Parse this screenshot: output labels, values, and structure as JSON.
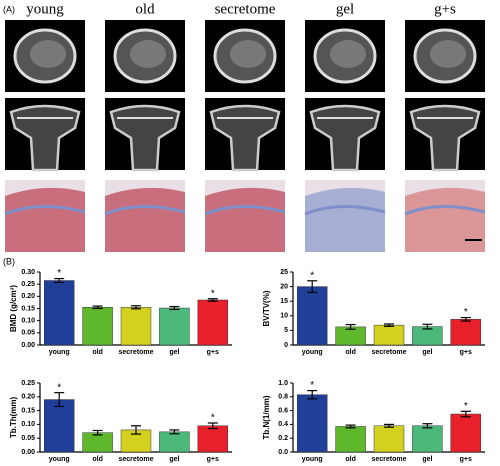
{
  "panel_labels": [
    "(A)",
    "(B)"
  ],
  "columns": [
    "young",
    "old",
    "secretome",
    "gel",
    "g+s"
  ],
  "chart_data": [
    {
      "type": "bar",
      "ylabel": "BMD (g/cm³)",
      "categories": [
        "young",
        "old",
        "secretome",
        "gel",
        "g+s"
      ],
      "values": [
        0.265,
        0.155,
        0.155,
        0.152,
        0.185
      ],
      "errors": [
        0.008,
        0.005,
        0.006,
        0.006,
        0.005
      ],
      "annotations": [
        "*",
        null,
        null,
        null,
        "*"
      ],
      "colors": [
        "#1f3f99",
        "#5fb82c",
        "#d4d020",
        "#4cb87a",
        "#e8202a"
      ],
      "ylim": [
        0,
        0.3
      ],
      "yticks": [
        {
          "value": 0,
          "label": "0.00"
        },
        0.05,
        {
          "value": 0.1,
          "label": "0.10"
        },
        0.15,
        {
          "value": 0.2,
          "label": "0.20"
        },
        0.25,
        {
          "value": 0.3,
          "label": "0.30"
        }
      ]
    },
    {
      "type": "bar",
      "ylabel": "BV/TV(%)",
      "categories": [
        "young",
        "old",
        "secretome",
        "gel",
        "g+s"
      ],
      "values": [
        20,
        6.2,
        6.8,
        6.3,
        8.8
      ],
      "errors": [
        2,
        0.8,
        0.4,
        0.8,
        0.6
      ],
      "annotations": [
        "*",
        null,
        null,
        null,
        "*"
      ],
      "colors": [
        "#1f3f99",
        "#5fb82c",
        "#d4d020",
        "#4cb87a",
        "#e8202a"
      ],
      "ylim": [
        0,
        25
      ],
      "yticks": [
        0,
        5,
        10,
        15,
        20,
        25
      ]
    },
    {
      "type": "bar",
      "ylabel": "Tb.Th(mm)",
      "categories": [
        "young",
        "old",
        "secretome",
        "gel",
        "g+s"
      ],
      "values": [
        0.19,
        0.07,
        0.08,
        0.073,
        0.095
      ],
      "errors": [
        0.025,
        0.008,
        0.015,
        0.007,
        0.01
      ],
      "annotations": [
        "*",
        null,
        null,
        null,
        "*"
      ],
      "colors": [
        "#1f3f99",
        "#5fb82c",
        "#d4d020",
        "#4cb87a",
        "#e8202a"
      ],
      "ylim": [
        0,
        0.25
      ],
      "yticks": [
        {
          "value": 0,
          "label": "0.00"
        },
        0.05,
        {
          "value": 0.1,
          "label": "0.10"
        },
        0.15,
        {
          "value": 0.2,
          "label": "0.20"
        },
        0.25
      ]
    },
    {
      "type": "bar",
      "ylabel": "Tb.N(1/mm)",
      "categories": [
        "young",
        "old",
        "secretome",
        "gel",
        "g+s"
      ],
      "values": [
        0.83,
        0.37,
        0.38,
        0.38,
        0.55
      ],
      "errors": [
        0.06,
        0.02,
        0.02,
        0.03,
        0.04
      ],
      "annotations": [
        "*",
        null,
        null,
        null,
        "*"
      ],
      "colors": [
        "#1f3f99",
        "#5fb82c",
        "#d4d020",
        "#4cb87a",
        "#e8202a"
      ],
      "ylim": [
        0,
        1
      ],
      "yticks": [
        {
          "value": 0,
          "label": "0.0"
        },
        0.2,
        0.4,
        0.6,
        0.8,
        {
          "value": 1,
          "label": "1.0"
        }
      ]
    }
  ]
}
